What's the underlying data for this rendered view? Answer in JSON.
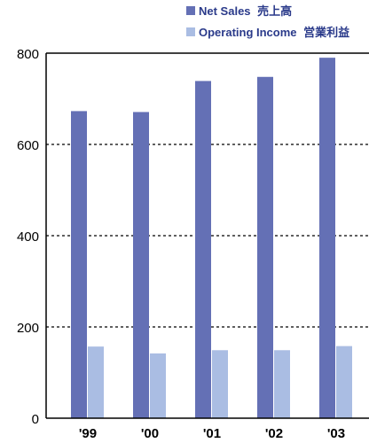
{
  "chart_data": {
    "type": "bar",
    "categories": [
      "'99",
      "'00",
      "'01",
      "'02",
      "'03"
    ],
    "series": [
      {
        "name": "Net Sales",
        "name_jp": "売上高",
        "values": [
          673,
          671,
          739,
          748,
          790
        ]
      },
      {
        "name": "Operating Income",
        "name_jp": "営業利益",
        "values": [
          157,
          142,
          149,
          149,
          158
        ]
      }
    ],
    "ylim": [
      0,
      800
    ],
    "yticks": [
      0,
      200,
      400,
      600,
      800
    ],
    "grid": true,
    "legend_position": "top-right",
    "colors": {
      "net_sales": "#6470b5",
      "operating_income": "#aabde3",
      "legend_text": "#2a3a8a",
      "axis": "#000000"
    }
  }
}
